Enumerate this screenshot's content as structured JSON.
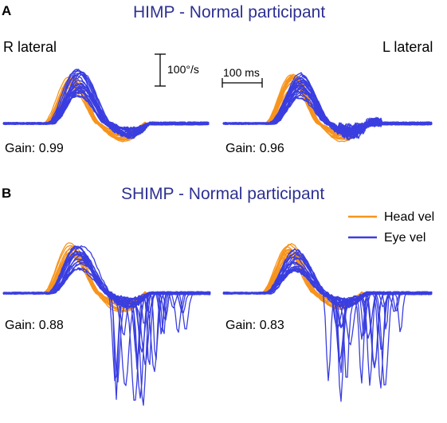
{
  "colors": {
    "head": "#f7941d",
    "eye": "#3a3ee0",
    "title": "#2e3192"
  },
  "panels": {
    "A": {
      "letter": "A",
      "title": "HIMP - Normal participant",
      "left_label": "R lateral",
      "right_label": "L lateral"
    },
    "B": {
      "letter": "B",
      "title": "SHIMP - Normal participant"
    }
  },
  "scale_bars": {
    "velocity": "100°/s",
    "time": "100 ms"
  },
  "legend": {
    "head": "Head vel",
    "eye": "Eye vel"
  },
  "chart_data": [
    {
      "type": "line",
      "panel": "A",
      "side": "R lateral",
      "paradigm": "HIMP",
      "gain_text": "Gain: 0.99",
      "gain": 0.99,
      "series": [
        {
          "name": "Head vel",
          "peak_deg_s": 155
        },
        {
          "name": "Eye vel",
          "peak_deg_s": 153
        }
      ]
    },
    {
      "type": "line",
      "panel": "A",
      "side": "L lateral",
      "paradigm": "HIMP",
      "gain_text": "Gain: 0.96",
      "gain": 0.96,
      "series": [
        {
          "name": "Head vel",
          "peak_deg_s": 150
        },
        {
          "name": "Eye vel",
          "peak_deg_s": 144
        }
      ]
    },
    {
      "type": "line",
      "panel": "B",
      "side": "R lateral",
      "paradigm": "SHIMP",
      "gain_text": "Gain: 0.88",
      "gain": 0.88,
      "series": [
        {
          "name": "Head vel",
          "peak_deg_s": 155
        },
        {
          "name": "Eye vel",
          "peak_deg_s": 136
        }
      ]
    },
    {
      "type": "line",
      "panel": "B",
      "side": "L lateral",
      "paradigm": "SHIMP",
      "gain_text": "Gain: 0.83",
      "gain": 0.83,
      "series": [
        {
          "name": "Head vel",
          "peak_deg_s": 150
        },
        {
          "name": "Eye vel",
          "peak_deg_s": 125
        }
      ]
    }
  ]
}
